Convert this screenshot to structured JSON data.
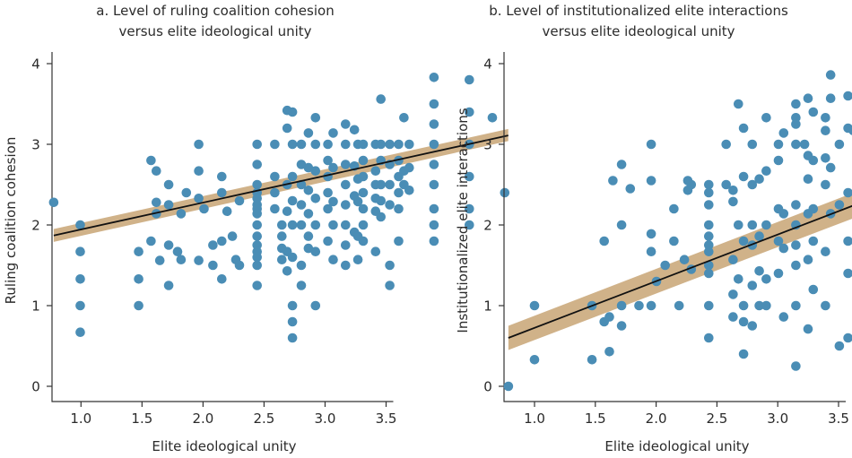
{
  "colors": {
    "point": "#4a8db5",
    "band": "#c8a574",
    "fit_line": "#111111",
    "axis": "#333333"
  },
  "chart_data": [
    {
      "type": "scatter",
      "title": "a. Level of ruling coalition cohesion",
      "subtitle": "versus elite ideological unity",
      "xlabel": "Elite ideological unity",
      "ylabel": "Ruling coalition cohesion",
      "xlim": [
        0.85,
        3.55
      ],
      "ylim": [
        0,
        4.2
      ],
      "xticks": [
        "1.0",
        "1.5",
        "2.0",
        "2.5",
        "3.0",
        "3.5"
      ],
      "yticks": [
        "0",
        "1",
        "2",
        "3",
        "4"
      ],
      "grid": false,
      "fit": {
        "x0": 0.85,
        "y0": 1.87,
        "x1": 3.42,
        "y1": 3.11
      },
      "band": {
        "lower_start": 1.79,
        "upper_start": 1.95,
        "lower_end": 3.04,
        "upper_end": 3.19
      },
      "points": [
        [
          0.85,
          2.28
        ],
        [
          1.0,
          2.0
        ],
        [
          1.0,
          1.67
        ],
        [
          1.0,
          1.33
        ],
        [
          1.0,
          1.0
        ],
        [
          1.0,
          0.67
        ],
        [
          1.33,
          1.67
        ],
        [
          1.33,
          1.33
        ],
        [
          1.33,
          1.0
        ],
        [
          1.4,
          2.8
        ],
        [
          1.4,
          1.8
        ],
        [
          1.43,
          2.67
        ],
        [
          1.43,
          2.28
        ],
        [
          1.43,
          2.14
        ],
        [
          1.45,
          1.56
        ],
        [
          1.5,
          2.5
        ],
        [
          1.5,
          2.25
        ],
        [
          1.5,
          1.75
        ],
        [
          1.5,
          1.25
        ],
        [
          1.55,
          1.67
        ],
        [
          1.57,
          2.14
        ],
        [
          1.57,
          1.57
        ],
        [
          1.6,
          2.4
        ],
        [
          1.67,
          3.0
        ],
        [
          1.67,
          2.67
        ],
        [
          1.67,
          2.33
        ],
        [
          1.67,
          1.56
        ],
        [
          1.7,
          2.2
        ],
        [
          1.75,
          1.75
        ],
        [
          1.75,
          1.5
        ],
        [
          1.8,
          2.6
        ],
        [
          1.8,
          2.4
        ],
        [
          1.8,
          1.8
        ],
        [
          1.8,
          1.33
        ],
        [
          1.83,
          2.17
        ],
        [
          1.86,
          1.86
        ],
        [
          1.88,
          1.57
        ],
        [
          1.9,
          2.3
        ],
        [
          1.9,
          1.5
        ],
        [
          2.0,
          3.0
        ],
        [
          2.0,
          2.75
        ],
        [
          2.0,
          2.5
        ],
        [
          2.0,
          2.4
        ],
        [
          2.0,
          2.33
        ],
        [
          2.0,
          2.25
        ],
        [
          2.0,
          2.2
        ],
        [
          2.0,
          2.14
        ],
        [
          2.0,
          2.0
        ],
        [
          2.0,
          1.86
        ],
        [
          2.0,
          1.75
        ],
        [
          2.0,
          1.67
        ],
        [
          2.0,
          1.6
        ],
        [
          2.0,
          1.5
        ],
        [
          2.0,
          1.25
        ],
        [
          2.1,
          3.0
        ],
        [
          2.1,
          2.6
        ],
        [
          2.1,
          2.4
        ],
        [
          2.1,
          2.2
        ],
        [
          2.14,
          2.0
        ],
        [
          2.14,
          1.86
        ],
        [
          2.14,
          1.71
        ],
        [
          2.14,
          1.57
        ],
        [
          2.17,
          3.42
        ],
        [
          2.17,
          3.2
        ],
        [
          2.17,
          2.5
        ],
        [
          2.17,
          2.17
        ],
        [
          2.17,
          1.67
        ],
        [
          2.17,
          1.43
        ],
        [
          2.2,
          3.4
        ],
        [
          2.2,
          3.0
        ],
        [
          2.2,
          2.6
        ],
        [
          2.2,
          2.3
        ],
        [
          2.2,
          2.0
        ],
        [
          2.2,
          1.6
        ],
        [
          2.2,
          1.0
        ],
        [
          2.2,
          0.8
        ],
        [
          2.2,
          0.6
        ],
        [
          2.25,
          3.0
        ],
        [
          2.25,
          2.75
        ],
        [
          2.25,
          2.5
        ],
        [
          2.25,
          2.25
        ],
        [
          2.25,
          2.0
        ],
        [
          2.25,
          1.5
        ],
        [
          2.25,
          1.25
        ],
        [
          2.29,
          3.14
        ],
        [
          2.29,
          2.71
        ],
        [
          2.29,
          2.43
        ],
        [
          2.29,
          2.14
        ],
        [
          2.29,
          1.86
        ],
        [
          2.29,
          1.71
        ],
        [
          2.33,
          3.33
        ],
        [
          2.33,
          3.0
        ],
        [
          2.33,
          2.67
        ],
        [
          2.33,
          2.33
        ],
        [
          2.33,
          2.0
        ],
        [
          2.33,
          1.67
        ],
        [
          2.33,
          1.0
        ],
        [
          2.4,
          3.0
        ],
        [
          2.4,
          2.8
        ],
        [
          2.4,
          2.6
        ],
        [
          2.4,
          2.4
        ],
        [
          2.4,
          2.2
        ],
        [
          2.4,
          1.8
        ],
        [
          2.43,
          3.14
        ],
        [
          2.43,
          2.71
        ],
        [
          2.43,
          2.29
        ],
        [
          2.43,
          2.0
        ],
        [
          2.43,
          1.57
        ],
        [
          2.5,
          3.25
        ],
        [
          2.5,
          3.0
        ],
        [
          2.5,
          2.75
        ],
        [
          2.5,
          2.5
        ],
        [
          2.5,
          2.25
        ],
        [
          2.5,
          2.0
        ],
        [
          2.5,
          1.75
        ],
        [
          2.5,
          1.5
        ],
        [
          2.55,
          3.18
        ],
        [
          2.55,
          2.73
        ],
        [
          2.55,
          2.36
        ],
        [
          2.55,
          1.91
        ],
        [
          2.57,
          3.0
        ],
        [
          2.57,
          2.57
        ],
        [
          2.57,
          2.29
        ],
        [
          2.57,
          1.86
        ],
        [
          2.57,
          1.57
        ],
        [
          2.6,
          3.0
        ],
        [
          2.6,
          2.8
        ],
        [
          2.6,
          2.6
        ],
        [
          2.6,
          2.4
        ],
        [
          2.6,
          2.2
        ],
        [
          2.6,
          2.0
        ],
        [
          2.6,
          1.8
        ],
        [
          2.67,
          3.0
        ],
        [
          2.67,
          2.67
        ],
        [
          2.67,
          2.5
        ],
        [
          2.67,
          2.33
        ],
        [
          2.67,
          2.17
        ],
        [
          2.67,
          1.67
        ],
        [
          2.7,
          3.56
        ],
        [
          2.7,
          3.0
        ],
        [
          2.7,
          2.8
        ],
        [
          2.7,
          2.5
        ],
        [
          2.7,
          2.3
        ],
        [
          2.7,
          2.1
        ],
        [
          2.75,
          3.0
        ],
        [
          2.75,
          2.75
        ],
        [
          2.75,
          2.5
        ],
        [
          2.75,
          2.25
        ],
        [
          2.75,
          1.5
        ],
        [
          2.75,
          1.25
        ],
        [
          2.8,
          3.0
        ],
        [
          2.8,
          2.8
        ],
        [
          2.8,
          2.6
        ],
        [
          2.8,
          2.4
        ],
        [
          2.8,
          2.2
        ],
        [
          2.8,
          1.8
        ],
        [
          2.83,
          3.33
        ],
        [
          2.83,
          2.67
        ],
        [
          2.83,
          2.5
        ],
        [
          2.86,
          3.0
        ],
        [
          2.86,
          2.71
        ],
        [
          2.86,
          2.43
        ],
        [
          3.0,
          3.83
        ],
        [
          3.0,
          3.5
        ],
        [
          3.0,
          3.25
        ],
        [
          3.0,
          3.0
        ],
        [
          3.0,
          2.75
        ],
        [
          3.0,
          2.5
        ],
        [
          3.0,
          2.2
        ],
        [
          3.0,
          2.0
        ],
        [
          3.0,
          1.8
        ],
        [
          3.2,
          3.8
        ],
        [
          3.2,
          3.4
        ],
        [
          3.2,
          3.0
        ],
        [
          3.2,
          2.6
        ],
        [
          3.2,
          2.2
        ],
        [
          3.2,
          2.0
        ],
        [
          3.33,
          3.33
        ],
        [
          3.4,
          2.4
        ]
      ]
    },
    {
      "type": "scatter",
      "title": "b. Level of institutionalized elite interactions",
      "subtitle": "versus elite ideological unity",
      "xlabel": "Elite ideological unity",
      "ylabel": "Institutionalized elite interactions",
      "xlim": [
        0.85,
        3.55
      ],
      "ylim": [
        0,
        4.2
      ],
      "xticks": [
        "1.0",
        "1.5",
        "2.0",
        "2.5",
        "3.0",
        "3.5"
      ],
      "yticks": [
        "0",
        "1",
        "2",
        "3",
        "4"
      ],
      "grid": false,
      "fit": {
        "x0": 0.85,
        "y0": 0.6,
        "x1": 3.42,
        "y1": 2.73
      },
      "band": {
        "lower_start": 0.45,
        "upper_start": 0.75,
        "lower_end": 2.57,
        "upper_end": 2.89
      },
      "points": [
        [
          0.85,
          0.0
        ],
        [
          1.0,
          1.0
        ],
        [
          1.0,
          0.33
        ],
        [
          1.33,
          1.0
        ],
        [
          1.33,
          0.33
        ],
        [
          1.4,
          1.8
        ],
        [
          1.4,
          0.8
        ],
        [
          1.43,
          0.43
        ],
        [
          1.43,
          0.86
        ],
        [
          1.45,
          2.55
        ],
        [
          1.5,
          2.75
        ],
        [
          1.5,
          2.0
        ],
        [
          1.5,
          1.0
        ],
        [
          1.5,
          0.75
        ],
        [
          1.55,
          2.45
        ],
        [
          1.6,
          1.0
        ],
        [
          1.67,
          3.0
        ],
        [
          1.67,
          2.55
        ],
        [
          1.67,
          1.89
        ],
        [
          1.67,
          1.67
        ],
        [
          1.67,
          1.0
        ],
        [
          1.7,
          1.3
        ],
        [
          1.75,
          1.5
        ],
        [
          1.8,
          2.2
        ],
        [
          1.8,
          1.8
        ],
        [
          1.83,
          1.0
        ],
        [
          1.86,
          1.57
        ],
        [
          1.88,
          2.43
        ],
        [
          1.88,
          2.55
        ],
        [
          1.9,
          2.5
        ],
        [
          1.9,
          1.45
        ],
        [
          2.0,
          2.5
        ],
        [
          2.0,
          2.4
        ],
        [
          2.0,
          2.25
        ],
        [
          2.0,
          2.0
        ],
        [
          2.0,
          1.86
        ],
        [
          2.0,
          1.75
        ],
        [
          2.0,
          1.67
        ],
        [
          2.0,
          1.5
        ],
        [
          2.0,
          1.4
        ],
        [
          2.0,
          1.0
        ],
        [
          2.0,
          0.6
        ],
        [
          2.1,
          3.0
        ],
        [
          2.1,
          2.5
        ],
        [
          2.14,
          2.43
        ],
        [
          2.14,
          2.29
        ],
        [
          2.14,
          1.57
        ],
        [
          2.14,
          1.14
        ],
        [
          2.14,
          0.86
        ],
        [
          2.17,
          3.5
        ],
        [
          2.17,
          2.0
        ],
        [
          2.17,
          1.33
        ],
        [
          2.2,
          3.2
        ],
        [
          2.2,
          2.6
        ],
        [
          2.2,
          1.8
        ],
        [
          2.2,
          1.0
        ],
        [
          2.2,
          0.8
        ],
        [
          2.2,
          0.4
        ],
        [
          2.25,
          3.0
        ],
        [
          2.25,
          2.5
        ],
        [
          2.25,
          2.0
        ],
        [
          2.25,
          1.75
        ],
        [
          2.25,
          1.25
        ],
        [
          2.25,
          0.75
        ],
        [
          2.29,
          2.57
        ],
        [
          2.29,
          1.86
        ],
        [
          2.29,
          1.43
        ],
        [
          2.29,
          1.0
        ],
        [
          2.33,
          3.33
        ],
        [
          2.33,
          2.67
        ],
        [
          2.33,
          2.0
        ],
        [
          2.33,
          1.33
        ],
        [
          2.33,
          1.0
        ],
        [
          2.4,
          3.0
        ],
        [
          2.4,
          2.8
        ],
        [
          2.4,
          2.2
        ],
        [
          2.4,
          1.8
        ],
        [
          2.4,
          1.4
        ],
        [
          2.43,
          3.14
        ],
        [
          2.43,
          2.14
        ],
        [
          2.43,
          1.71
        ],
        [
          2.43,
          0.86
        ],
        [
          2.5,
          3.5
        ],
        [
          2.5,
          3.33
        ],
        [
          2.5,
          3.25
        ],
        [
          2.5,
          3.0
        ],
        [
          2.5,
          2.25
        ],
        [
          2.5,
          2.0
        ],
        [
          2.5,
          1.75
        ],
        [
          2.5,
          1.5
        ],
        [
          2.5,
          1.0
        ],
        [
          2.5,
          0.25
        ],
        [
          2.55,
          3.0
        ],
        [
          2.57,
          3.57
        ],
        [
          2.57,
          2.86
        ],
        [
          2.57,
          2.57
        ],
        [
          2.57,
          2.14
        ],
        [
          2.57,
          1.57
        ],
        [
          2.57,
          0.71
        ],
        [
          2.6,
          3.4
        ],
        [
          2.6,
          2.8
        ],
        [
          2.6,
          2.2
        ],
        [
          2.6,
          1.8
        ],
        [
          2.6,
          1.2
        ],
        [
          2.67,
          3.33
        ],
        [
          2.67,
          3.17
        ],
        [
          2.67,
          2.83
        ],
        [
          2.67,
          2.5
        ],
        [
          2.67,
          1.67
        ],
        [
          2.67,
          1.0
        ],
        [
          2.7,
          3.86
        ],
        [
          2.7,
          3.57
        ],
        [
          2.7,
          2.71
        ],
        [
          2.7,
          2.14
        ],
        [
          2.75,
          3.0
        ],
        [
          2.75,
          2.25
        ],
        [
          2.75,
          0.5
        ],
        [
          2.8,
          3.6
        ],
        [
          2.8,
          3.2
        ],
        [
          2.8,
          2.4
        ],
        [
          2.8,
          1.8
        ],
        [
          2.8,
          1.4
        ],
        [
          2.8,
          0.6
        ],
        [
          2.83,
          3.17
        ],
        [
          2.86,
          2.14
        ],
        [
          2.86,
          0.71
        ],
        [
          3.0,
          3.4
        ],
        [
          3.0,
          3.0
        ],
        [
          3.0,
          2.8
        ],
        [
          3.0,
          2.6
        ],
        [
          3.0,
          2.0
        ],
        [
          3.0,
          1.8
        ],
        [
          3.0,
          1.67
        ],
        [
          3.0,
          1.0
        ],
        [
          3.0,
          0.8
        ],
        [
          3.2,
          3.0
        ],
        [
          3.2,
          2.4
        ],
        [
          3.2,
          1.6
        ],
        [
          3.2,
          0.8
        ],
        [
          3.33,
          2.5
        ],
        [
          3.4,
          2.4
        ]
      ]
    }
  ]
}
